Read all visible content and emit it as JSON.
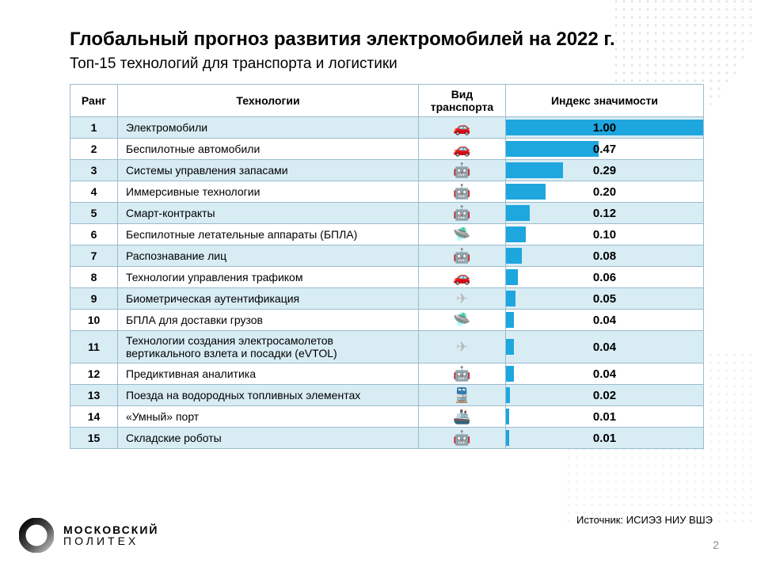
{
  "title": "Глобальный прогноз развития электромобилей на 2022 г.",
  "subtitle": "Топ-15 технологий для транспорта и логистики",
  "columns": {
    "rank": "Ранг",
    "tech": "Технологии",
    "transport": "Вид транспорта",
    "index": "Индекс значимости"
  },
  "bar_color": "#1ea6df",
  "row_even_bg": "#d8ecf4",
  "row_odd_bg": "#ffffff",
  "border_color": "#9bbccf",
  "index_max": 1.0,
  "rows": [
    {
      "rank": 1,
      "tech": "Электромобили",
      "icon": "car",
      "index": 1.0,
      "label": "1.00"
    },
    {
      "rank": 2,
      "tech": "Беспилотные автомобили",
      "icon": "car",
      "index": 0.47,
      "label": "0.47"
    },
    {
      "rank": 3,
      "tech": "Системы управления запасами",
      "icon": "robot",
      "index": 0.29,
      "label": "0.29"
    },
    {
      "rank": 4,
      "tech": "Иммерсивные технологии",
      "icon": "robot",
      "index": 0.2,
      "label": "0.20"
    },
    {
      "rank": 5,
      "tech": "Смарт-контракты",
      "icon": "robot",
      "index": 0.12,
      "label": "0.12"
    },
    {
      "rank": 6,
      "tech": "Беспилотные летательные аппараты (БПЛА)",
      "icon": "drone",
      "index": 0.1,
      "label": "0.10"
    },
    {
      "rank": 7,
      "tech": "Распознавание лиц",
      "icon": "robot",
      "index": 0.08,
      "label": "0.08"
    },
    {
      "rank": 8,
      "tech": "Технологии управления трафиком",
      "icon": "car",
      "index": 0.06,
      "label": "0.06"
    },
    {
      "rank": 9,
      "tech": "Биометрическая аутентификация",
      "icon": "plane",
      "index": 0.05,
      "label": "0.05"
    },
    {
      "rank": 10,
      "tech": "БПЛА для доставки грузов",
      "icon": "drone",
      "index": 0.04,
      "label": "0.04"
    },
    {
      "rank": 11,
      "tech": "Технологии создания электросамолетов вертикального взлета и посадки (eVTOL)",
      "icon": "plane",
      "index": 0.04,
      "label": "0.04"
    },
    {
      "rank": 12,
      "tech": "Предиктивная аналитика",
      "icon": "robot",
      "index": 0.04,
      "label": "0.04"
    },
    {
      "rank": 13,
      "tech": "Поезда на водородных топливных элементах",
      "icon": "train",
      "index": 0.02,
      "label": "0.02"
    },
    {
      "rank": 14,
      "tech": "«Умный» порт",
      "icon": "ship",
      "index": 0.01,
      "label": "0.01"
    },
    {
      "rank": 15,
      "tech": "Складские роботы",
      "icon": "robot",
      "index": 0.01,
      "label": "0.01"
    }
  ],
  "icons": {
    "car": "🚗",
    "robot": "🤖",
    "drone": "🛸",
    "plane": "✈",
    "train": "🚆",
    "ship": "🚢"
  },
  "source": "Источник: ИСИЭЗ НИУ ВШЭ",
  "logo": {
    "line1": "МОСКОВСКИЙ",
    "line2": "ПОЛИТЕХ"
  },
  "page_number": "2"
}
